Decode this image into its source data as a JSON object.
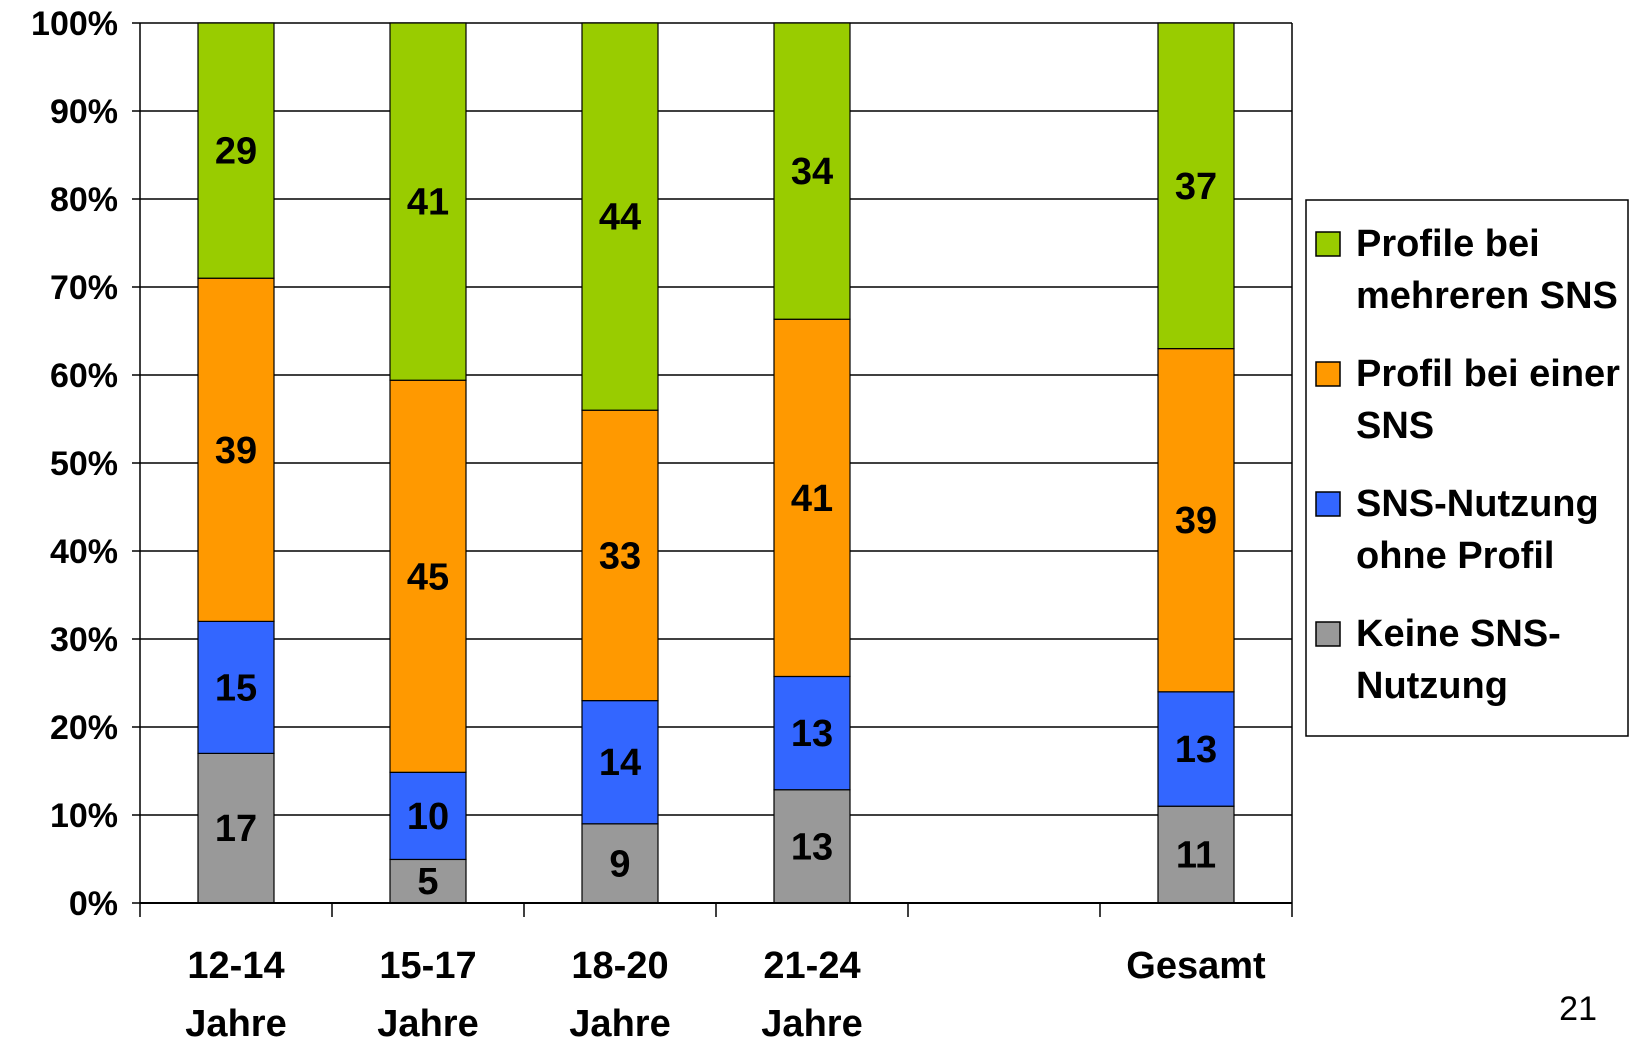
{
  "chart_data": {
    "type": "bar",
    "stacked": true,
    "percent_stacked": true,
    "categories": [
      [
        "12-14",
        "Jahre"
      ],
      [
        "15-17",
        "Jahre"
      ],
      [
        "18-20",
        "Jahre"
      ],
      [
        "21-24",
        "Jahre"
      ],
      [],
      [
        "Gesamt"
      ]
    ],
    "series": [
      {
        "name": "Keine SNS-Nutzung",
        "name_lines": [
          "Keine SNS-",
          "Nutzung"
        ],
        "color": "#999999",
        "values": [
          17,
          5,
          9,
          13,
          null,
          11
        ]
      },
      {
        "name": "SNS-Nutzung ohne Profil",
        "name_lines": [
          "SNS-Nutzung",
          "ohne Profil"
        ],
        "color": "#3366ff",
        "values": [
          15,
          10,
          14,
          13,
          null,
          13
        ]
      },
      {
        "name": "Profil bei einer SNS",
        "name_lines": [
          "Profil bei einer",
          "SNS"
        ],
        "color": "#ff9900",
        "values": [
          39,
          45,
          33,
          41,
          null,
          39
        ]
      },
      {
        "name": "Profile bei mehreren SNS",
        "name_lines": [
          "Profile bei",
          "mehreren SNS"
        ],
        "color": "#99cc00",
        "values": [
          29,
          41,
          44,
          34,
          null,
          37
        ]
      }
    ],
    "y_ticks": [
      "0%",
      "10%",
      "20%",
      "30%",
      "40%",
      "50%",
      "60%",
      "70%",
      "80%",
      "90%",
      "100%"
    ],
    "ylim": [
      0,
      100
    ],
    "grid": true,
    "legend_position": "right"
  },
  "page_number": "21"
}
